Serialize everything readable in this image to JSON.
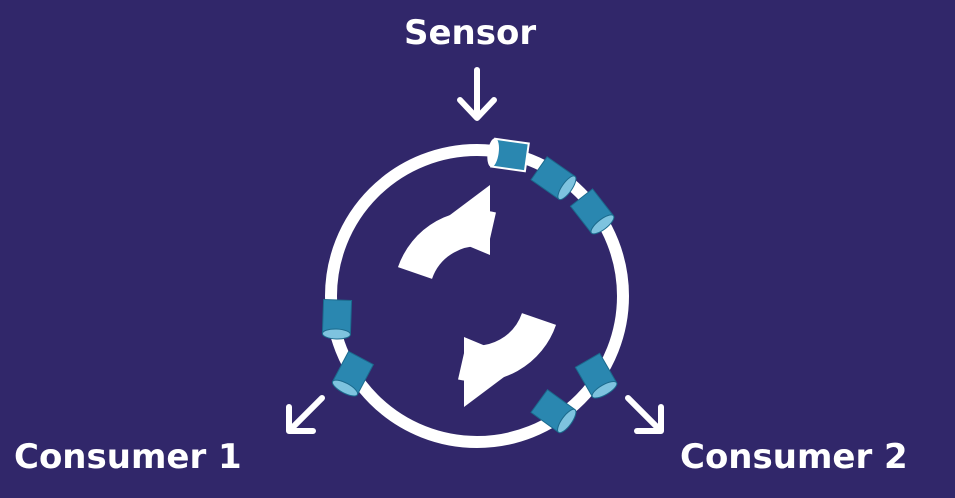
{
  "labels": {
    "sensor": "Sensor",
    "consumer_1": "Consumer 1",
    "consumer_2": "Consumer 2"
  },
  "icons": {
    "center": "refresh-cycle-icon",
    "arrows": "arrow-icon",
    "segments": "cylinder-segment-icon"
  },
  "colors": {
    "background": "#31276a",
    "foreground": "#ffffff",
    "segment_fill": "#2a87b0",
    "segment_top": "#7ec3df"
  }
}
